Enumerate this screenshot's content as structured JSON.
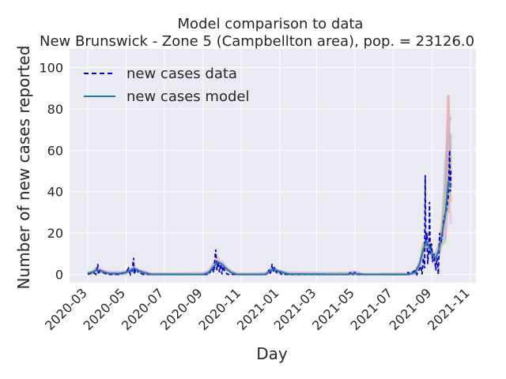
{
  "figure": {
    "title_line1": "Model comparison to data",
    "title_line2": "New Brunswick - Zone 5 (Campbellton area), pop. = 23126.0",
    "xlabel": "Day",
    "ylabel": "Number of new cases reported",
    "legend": {
      "data_label": "new cases data",
      "model_label": "new cases model"
    }
  },
  "colors": {
    "background": "#eaeaf2",
    "grid": "#ffffff",
    "data_line": "#0000cd",
    "model_line": "#1f77b4",
    "ensemble": [
      "#a6c8e6",
      "#f4b27a",
      "#9fd59f",
      "#e89a9a",
      "#c8b3dc",
      "#c9a99f",
      "#f2b5dd",
      "#bfbf9a"
    ]
  },
  "chart_data": {
    "type": "line",
    "title": "Model comparison to data\nNew Brunswick - Zone 5 (Campbellton area), pop. = 23126.0",
    "xlabel": "Day",
    "ylabel": "Number of new cases reported",
    "x_type": "date",
    "xlim": [
      "2020-02-01",
      "2021-11-10"
    ],
    "ylim": [
      -4,
      109
    ],
    "x_ticks": [
      "2020-03",
      "2020-05",
      "2020-07",
      "2020-09",
      "2020-11",
      "2021-01",
      "2021-03",
      "2021-05",
      "2021-07",
      "2021-09",
      "2021-11"
    ],
    "y_ticks": [
      0,
      20,
      40,
      60,
      80,
      100
    ],
    "grid": true,
    "legend_position": "top-left",
    "series": [
      {
        "name": "new cases data",
        "style": "dashed",
        "points": [
          [
            "2020-03-01",
            0
          ],
          [
            "2020-03-10",
            1
          ],
          [
            "2020-03-14",
            0
          ],
          [
            "2020-03-17",
            5
          ],
          [
            "2020-03-18",
            0
          ],
          [
            "2020-03-21",
            2
          ],
          [
            "2020-03-25",
            1
          ],
          [
            "2020-04-01",
            0
          ],
          [
            "2020-04-20",
            0
          ],
          [
            "2020-05-01",
            1
          ],
          [
            "2020-05-05",
            3
          ],
          [
            "2020-05-08",
            0
          ],
          [
            "2020-05-11",
            2
          ],
          [
            "2020-05-13",
            8
          ],
          [
            "2020-05-14",
            0
          ],
          [
            "2020-05-17",
            3
          ],
          [
            "2020-05-21",
            1
          ],
          [
            "2020-05-28",
            0
          ],
          [
            "2020-09-10",
            0
          ],
          [
            "2020-09-15",
            3
          ],
          [
            "2020-09-18",
            1
          ],
          [
            "2020-09-21",
            12
          ],
          [
            "2020-09-23",
            2
          ],
          [
            "2020-09-25",
            6
          ],
          [
            "2020-09-27",
            1
          ],
          [
            "2020-09-29",
            5
          ],
          [
            "2020-10-01",
            0
          ],
          [
            "2020-10-03",
            4
          ],
          [
            "2020-10-06",
            1
          ],
          [
            "2020-10-10",
            0
          ],
          [
            "2020-12-10",
            0
          ],
          [
            "2020-12-15",
            2
          ],
          [
            "2020-12-17",
            0
          ],
          [
            "2020-12-20",
            5
          ],
          [
            "2020-12-22",
            1
          ],
          [
            "2020-12-24",
            3
          ],
          [
            "2020-12-27",
            1
          ],
          [
            "2020-12-30",
            2
          ],
          [
            "2021-01-04",
            0
          ],
          [
            "2021-04-20",
            0
          ],
          [
            "2021-04-25",
            1
          ],
          [
            "2021-04-28",
            0
          ],
          [
            "2021-05-01",
            1
          ],
          [
            "2021-05-04",
            0
          ],
          [
            "2021-07-20",
            0
          ],
          [
            "2021-07-25",
            1
          ],
          [
            "2021-07-28",
            0
          ],
          [
            "2021-08-05",
            2
          ],
          [
            "2021-08-08",
            0
          ],
          [
            "2021-08-14",
            4
          ],
          [
            "2021-08-16",
            0
          ],
          [
            "2021-08-18",
            8
          ],
          [
            "2021-08-20",
            3
          ],
          [
            "2021-08-21",
            48
          ],
          [
            "2021-08-22",
            15
          ],
          [
            "2021-08-24",
            20
          ],
          [
            "2021-08-25",
            5
          ],
          [
            "2021-08-27",
            12
          ],
          [
            "2021-08-28",
            35
          ],
          [
            "2021-08-29",
            10
          ],
          [
            "2021-08-31",
            15
          ],
          [
            "2021-09-02",
            6
          ],
          [
            "2021-09-04",
            10
          ],
          [
            "2021-09-06",
            5
          ],
          [
            "2021-09-07",
            2
          ],
          [
            "2021-09-09",
            8
          ],
          [
            "2021-09-11",
            0
          ],
          [
            "2021-09-13",
            20
          ],
          [
            "2021-09-15",
            15
          ],
          [
            "2021-09-17",
            18
          ],
          [
            "2021-09-19",
            25
          ],
          [
            "2021-09-21",
            28
          ],
          [
            "2021-09-23",
            30
          ],
          [
            "2021-09-25",
            33
          ],
          [
            "2021-09-27",
            38
          ],
          [
            "2021-09-29",
            60
          ],
          [
            "2021-09-30",
            40
          ],
          [
            "2021-10-01",
            50
          ]
        ]
      },
      {
        "name": "new cases model",
        "style": "solid",
        "points": [
          [
            "2020-03-01",
            0.5
          ],
          [
            "2020-03-08",
            1
          ],
          [
            "2020-03-14",
            2
          ],
          [
            "2020-03-20",
            2
          ],
          [
            "2020-03-28",
            1
          ],
          [
            "2020-04-05",
            0.5
          ],
          [
            "2020-04-20",
            0.5
          ],
          [
            "2020-05-01",
            1
          ],
          [
            "2020-05-08",
            2
          ],
          [
            "2020-05-14",
            3
          ],
          [
            "2020-05-20",
            2
          ],
          [
            "2020-05-28",
            1
          ],
          [
            "2020-06-10",
            0
          ],
          [
            "2020-09-01",
            0
          ],
          [
            "2020-09-10",
            1
          ],
          [
            "2020-09-18",
            4
          ],
          [
            "2020-09-25",
            6
          ],
          [
            "2020-10-01",
            5
          ],
          [
            "2020-10-07",
            3
          ],
          [
            "2020-10-15",
            1
          ],
          [
            "2020-10-25",
            0
          ],
          [
            "2020-12-08",
            0
          ],
          [
            "2020-12-14",
            1
          ],
          [
            "2020-12-20",
            2.5
          ],
          [
            "2020-12-27",
            2
          ],
          [
            "2021-01-05",
            1
          ],
          [
            "2021-01-15",
            0.2
          ],
          [
            "2021-04-20",
            0
          ],
          [
            "2021-04-28",
            0.5
          ],
          [
            "2021-05-05",
            0.3
          ],
          [
            "2021-05-15",
            0
          ],
          [
            "2021-07-25",
            0
          ],
          [
            "2021-08-05",
            1
          ],
          [
            "2021-08-12",
            5
          ],
          [
            "2021-08-18",
            12
          ],
          [
            "2021-08-23",
            16
          ],
          [
            "2021-08-28",
            13
          ],
          [
            "2021-09-02",
            9
          ],
          [
            "2021-09-07",
            8
          ],
          [
            "2021-09-12",
            12
          ],
          [
            "2021-09-17",
            20
          ],
          [
            "2021-09-22",
            28
          ],
          [
            "2021-09-27",
            45
          ],
          [
            "2021-10-01",
            42
          ]
        ]
      }
    ]
  }
}
